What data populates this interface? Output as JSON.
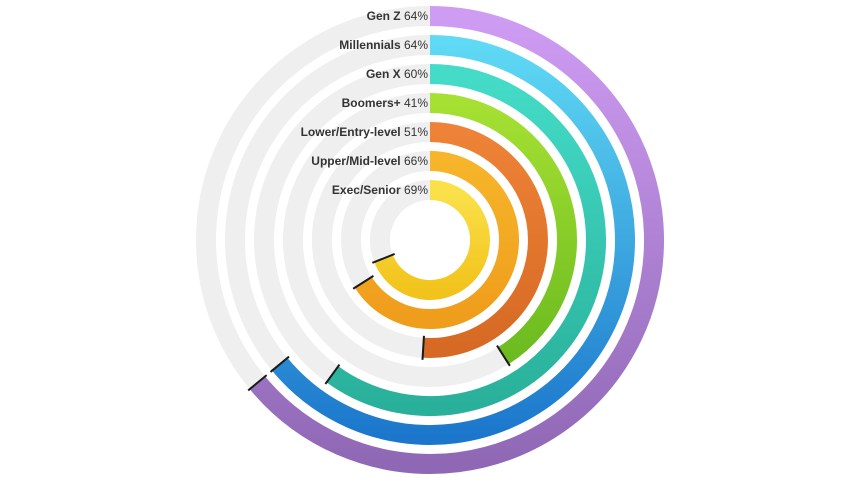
{
  "chart_data": {
    "type": "radial-bar",
    "max_value": 100,
    "series": [
      {
        "category": "Gen Z",
        "value": 64,
        "label_value": "64%",
        "color_start": "#cf9cf3",
        "color_end": "#8f68b5"
      },
      {
        "category": "Millennials",
        "value": 64,
        "label_value": "64%",
        "color_start": "#5fd9f4",
        "color_end": "#1c77cc"
      },
      {
        "category": "Gen X",
        "value": 60,
        "label_value": "60%",
        "color_start": "#44dcc8",
        "color_end": "#29b09a"
      },
      {
        "category": "Boomers+",
        "value": 41,
        "label_value": "41%",
        "color_start": "#a6e033",
        "color_end": "#6cbb20"
      },
      {
        "category": "Lower/Entry-level",
        "value": 51,
        "label_value": "51%",
        "color_start": "#ee8236",
        "color_end": "#d66a24"
      },
      {
        "category": "Upper/Mid-level",
        "value": 66,
        "label_value": "66%",
        "color_start": "#f6b52a",
        "color_end": "#ef9d1c"
      },
      {
        "category": "Exec/Senior",
        "value": 69,
        "label_value": "69%",
        "color_start": "#fae14a",
        "color_end": "#f2c31c"
      }
    ],
    "track_color": "#efefef",
    "end_marker_color": "#1a1a1a"
  }
}
